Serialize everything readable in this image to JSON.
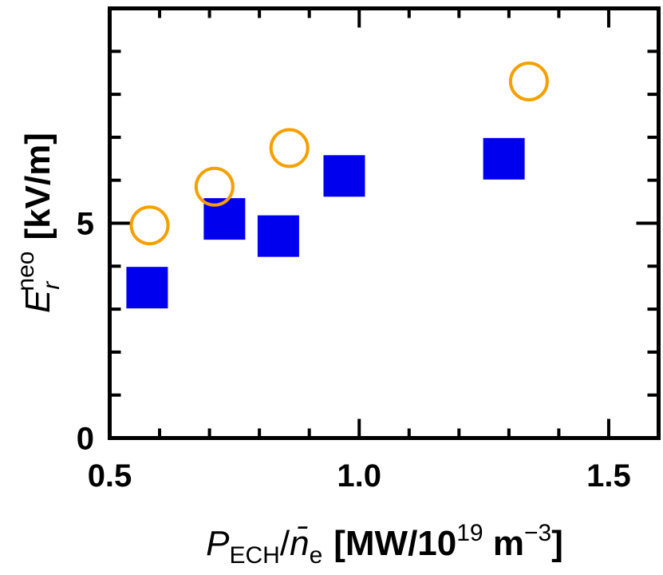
{
  "chart_data": {
    "type": "scatter",
    "title": "",
    "xlabel": {
      "symbol": "P",
      "symbol_sub": "ECH",
      "slash": "/",
      "denom": "n̄",
      "denom_sub": "e",
      "unit_open": "[MW/10",
      "unit_exp": "19",
      "unit_mid": " m",
      "unit_exp2": "−3",
      "unit_close": "]"
    },
    "ylabel": {
      "symbol": "E",
      "symbol_sub": "r",
      "symbol_sup": "neo",
      "unit": "[kV/m]"
    },
    "xlim": [
      0.5,
      1.6
    ],
    "ylim": [
      0,
      10
    ],
    "xticks": [
      {
        "value": 0.5,
        "label": "0.5"
      },
      {
        "value": 1.0,
        "label": "1.0"
      },
      {
        "value": 1.5,
        "label": "1.5"
      }
    ],
    "xminor": [
      0.6,
      0.7,
      0.8,
      0.9,
      1.1,
      1.2,
      1.3,
      1.4
    ],
    "yticks": [
      {
        "value": 0,
        "label": "0"
      },
      {
        "value": 5,
        "label": "5"
      }
    ],
    "yminor": [
      1,
      2,
      3,
      4,
      6,
      7,
      8,
      9
    ],
    "series": [
      {
        "name": "filled-squares",
        "marker": "square",
        "color": "#0000ee",
        "points": [
          {
            "x": 0.575,
            "y": 3.5
          },
          {
            "x": 0.73,
            "y": 5.1
          },
          {
            "x": 0.838,
            "y": 4.7
          },
          {
            "x": 0.97,
            "y": 6.1
          },
          {
            "x": 1.29,
            "y": 6.5
          }
        ]
      },
      {
        "name": "open-circles",
        "marker": "circle",
        "color": "#f5a000",
        "points": [
          {
            "x": 0.58,
            "y": 4.95
          },
          {
            "x": 0.71,
            "y": 5.85
          },
          {
            "x": 0.86,
            "y": 6.75
          },
          {
            "x": 1.34,
            "y": 8.3
          }
        ]
      }
    ]
  }
}
